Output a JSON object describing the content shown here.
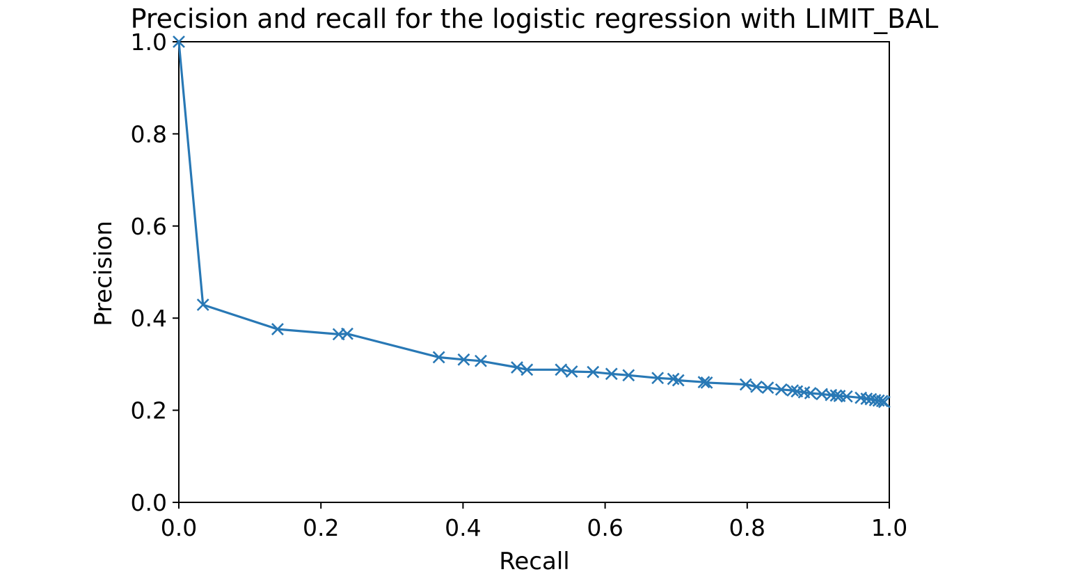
{
  "chart_data": {
    "type": "line",
    "title": "Precision and recall for the logistic regression with LIMIT_BAL",
    "xlabel": "Recall",
    "ylabel": "Precision",
    "xlim": [
      0.0,
      1.0
    ],
    "ylim": [
      0.0,
      1.0
    ],
    "x_ticks": [
      "0.0",
      "0.2",
      "0.4",
      "0.6",
      "0.8",
      "1.0"
    ],
    "y_ticks": [
      "0.0",
      "0.2",
      "0.4",
      "0.6",
      "0.8",
      "1.0"
    ],
    "grid": false,
    "legend": "none",
    "marker": "x",
    "color": "#2878b5",
    "series": [
      {
        "x": [
          0.0,
          0.034,
          0.139,
          0.225,
          0.237,
          0.366,
          0.401,
          0.425,
          0.476,
          0.49,
          0.538,
          0.553,
          0.583,
          0.609,
          0.633,
          0.674,
          0.696,
          0.703,
          0.739,
          0.743,
          0.798,
          0.813,
          0.829,
          0.848,
          0.864,
          0.87,
          0.88,
          0.889,
          0.905,
          0.918,
          0.925,
          0.93,
          0.94,
          0.96,
          0.968,
          0.974,
          0.98,
          0.985,
          0.99,
          0.993
        ],
        "y": [
          1.0,
          0.429,
          0.376,
          0.365,
          0.366,
          0.315,
          0.31,
          0.307,
          0.293,
          0.288,
          0.288,
          0.284,
          0.283,
          0.279,
          0.276,
          0.27,
          0.268,
          0.265,
          0.261,
          0.26,
          0.256,
          0.251,
          0.249,
          0.245,
          0.243,
          0.241,
          0.239,
          0.237,
          0.235,
          0.233,
          0.232,
          0.231,
          0.23,
          0.227,
          0.225,
          0.224,
          0.222,
          0.221,
          0.22,
          0.218
        ]
      }
    ]
  }
}
